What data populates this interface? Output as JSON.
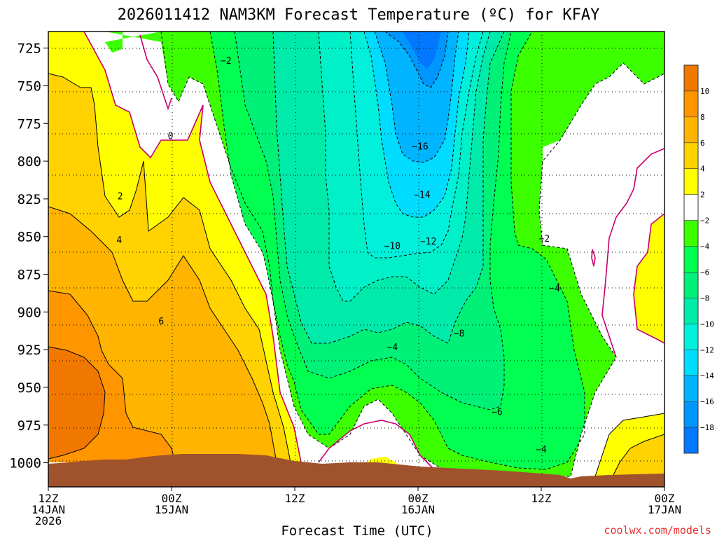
{
  "chart_data": {
    "type": "contour",
    "title": "2026011412 NAM3KM Forecast Temperature (ºC) for KFAY",
    "xlabel": "Forecast Time (UTC)",
    "ylabel": "",
    "credit": "coolwx.com/models",
    "x_ticks": [
      {
        "hours": 0,
        "l1": "12Z",
        "l2": "14JAN",
        "l3": "2026"
      },
      {
        "hours": 12,
        "l1": "00Z",
        "l2": "15JAN",
        "l3": ""
      },
      {
        "hours": 24,
        "l1": "12Z",
        "l2": "",
        "l3": ""
      },
      {
        "hours": 36,
        "l1": "00Z",
        "l2": "16JAN",
        "l3": ""
      },
      {
        "hours": 48,
        "l1": "12Z",
        "l2": "",
        "l3": ""
      },
      {
        "hours": 60,
        "l1": "00Z",
        "l2": "17JAN",
        "l3": ""
      }
    ],
    "xlim": [
      0,
      60
    ],
    "y_ticks": [
      725,
      750,
      775,
      800,
      825,
      850,
      875,
      900,
      925,
      950,
      975,
      1000
    ],
    "ylim": [
      1016,
      714
    ],
    "grid": "dotted",
    "colorbar": {
      "labels": [
        "10",
        "8",
        "6",
        "4",
        "2",
        "−2",
        "−4",
        "−6",
        "−8",
        "−10",
        "−12",
        "−14",
        "−16",
        "−18"
      ],
      "colors": [
        "#f07800",
        "#ff9600",
        "#ffb400",
        "#ffd200",
        "#ffff00",
        "#ffffff",
        "#3cff00",
        "#00ff50",
        "#00f078",
        "#00ebaa",
        "#00f0dc",
        "#00dcff",
        "#00b4ff",
        "#0096ff",
        "#0078ff"
      ]
    },
    "contour_labels": [
      {
        "text": "−2",
        "hours": 17.3,
        "p": 733
      },
      {
        "text": "0",
        "hours": 11.9,
        "p": 783
      },
      {
        "text": "2",
        "hours": 7.0,
        "p": 823
      },
      {
        "text": "4",
        "hours": 6.9,
        "p": 852
      },
      {
        "text": "6",
        "hours": 11.0,
        "p": 906
      },
      {
        "text": "−10",
        "hours": 33.5,
        "p": 856
      },
      {
        "text": "−12",
        "hours": 37.0,
        "p": 853
      },
      {
        "text": "−14",
        "hours": 36.4,
        "p": 822
      },
      {
        "text": "−16",
        "hours": 36.2,
        "p": 790
      },
      {
        "text": "−8",
        "hours": 40.0,
        "p": 914
      },
      {
        "text": "−4",
        "hours": 33.5,
        "p": 923
      },
      {
        "text": "−6",
        "hours": 43.7,
        "p": 966
      },
      {
        "text": "−4",
        "hours": 48.0,
        "p": 991
      },
      {
        "text": "−2",
        "hours": 48.3,
        "p": 851
      },
      {
        "text": "−4",
        "hours": 49.3,
        "p": 884
      }
    ]
  }
}
